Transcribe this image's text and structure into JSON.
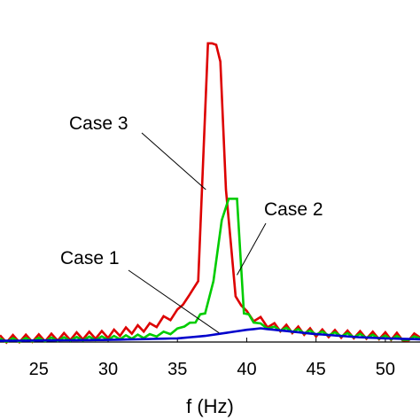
{
  "chart_data": {
    "type": "line",
    "xlabel": "f (Hz)",
    "ylabel": "",
    "xlim": [
      22.2,
      52.5
    ],
    "ylim": [
      0,
      1.0
    ],
    "xticks": [
      25,
      30,
      35,
      40,
      45,
      50
    ],
    "xtick_labels": [
      "25",
      "30",
      "35",
      "40",
      "45",
      "50"
    ],
    "grid": false,
    "series": [
      {
        "name": "Case 1",
        "color": "#0000cc",
        "x": [
          22.2,
          25,
          30,
          35,
          37,
          38.5,
          40,
          41,
          42,
          45,
          48,
          50,
          52.5
        ],
        "y": [
          0.004,
          0.005,
          0.007,
          0.012,
          0.02,
          0.03,
          0.04,
          0.045,
          0.04,
          0.026,
          0.016,
          0.012,
          0.009
        ]
      },
      {
        "name": "Case 2",
        "color": "#00cc00",
        "x": [
          22.2,
          25,
          30,
          33,
          34.5,
          35.5,
          36.3,
          37,
          37.6,
          38.2,
          38.7,
          39.3,
          39.8,
          40.5,
          41,
          42,
          45,
          50,
          52.5
        ],
        "y": [
          0.006,
          0.008,
          0.013,
          0.02,
          0.032,
          0.045,
          0.07,
          0.1,
          0.2,
          0.4,
          0.47,
          0.47,
          0.1,
          0.07,
          0.055,
          0.045,
          0.03,
          0.015,
          0.012
        ]
      },
      {
        "name": "Case 3",
        "color": "#dd0000",
        "x": [
          22.2,
          25,
          30,
          33,
          35,
          35.8,
          36.5,
          37.2,
          37.5,
          37.8,
          38.1,
          38.5,
          39.2,
          40,
          41,
          42,
          45,
          50,
          52.5
        ],
        "y": [
          0.01,
          0.013,
          0.025,
          0.05,
          0.095,
          0.15,
          0.2,
          0.98,
          0.98,
          0.975,
          0.92,
          0.5,
          0.15,
          0.09,
          0.07,
          0.05,
          0.03,
          0.02,
          0.015
        ]
      }
    ],
    "annotations": [
      {
        "text": "Case 3",
        "series": "Case 3",
        "x": 37.0
      },
      {
        "text": "Case 2",
        "series": "Case 2",
        "x": 39.3
      },
      {
        "text": "Case 1",
        "series": "Case 1",
        "x": 38.0
      }
    ]
  }
}
